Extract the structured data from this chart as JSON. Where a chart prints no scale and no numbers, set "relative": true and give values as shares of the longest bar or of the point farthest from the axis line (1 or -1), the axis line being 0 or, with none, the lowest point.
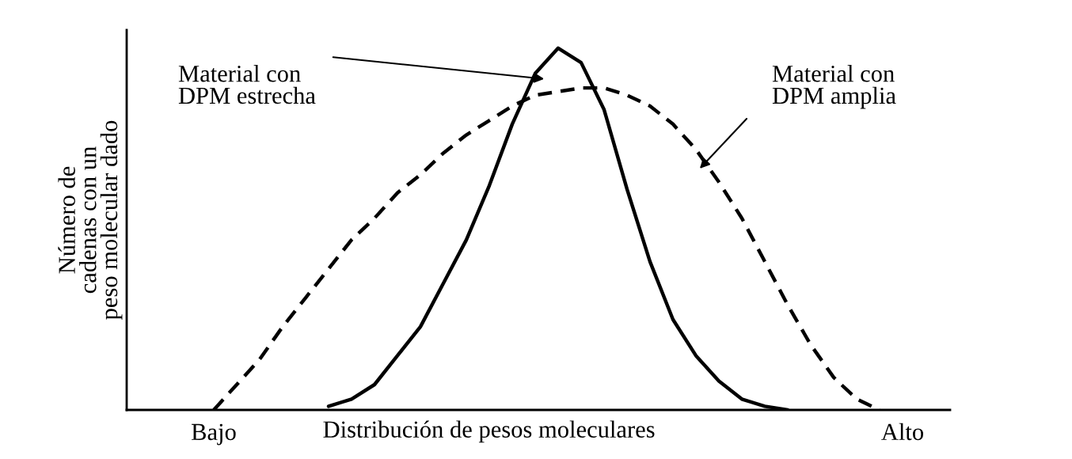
{
  "chart_data": {
    "type": "line",
    "relative": true,
    "xlabel": "Distribución de pesos moleculares",
    "ylabel": "Número de\ncadenas con un\npeso molecular dado",
    "categories": [
      "Bajo",
      null,
      null,
      null,
      null,
      null,
      null,
      null,
      null,
      null,
      null,
      null,
      null,
      null,
      null,
      null,
      null,
      null,
      null,
      null,
      null,
      null,
      null,
      null,
      null,
      null,
      null,
      null,
      null,
      null,
      "Alto"
    ],
    "grid": false,
    "legend": false,
    "marker": "none",
    "series": [
      {
        "color": "#000000",
        "line_style": "solid",
        "values": [
          null,
          null,
          null,
          null,
          null,
          0.01,
          0.03,
          0.07,
          0.15,
          0.23,
          0.35,
          0.47,
          0.62,
          0.79,
          0.93,
          1,
          0.96,
          0.83,
          0.61,
          0.41,
          0.25,
          0.15,
          0.08,
          0.03,
          0.01,
          0,
          null,
          null,
          null,
          null,
          null
        ]
      },
      {
        "color": "#000000",
        "line_style": "dashed",
        "values": [
          0,
          0.07,
          0.14,
          0.23,
          0.31,
          0.39,
          0.47,
          0.53,
          0.6,
          0.65,
          0.71,
          0.76,
          0.8,
          0.84,
          0.87,
          0.88,
          0.89,
          0.89,
          0.87,
          0.84,
          0.79,
          0.72,
          0.63,
          0.53,
          0.41,
          0.29,
          0.18,
          0.09,
          0.03,
          0,
          null
        ]
      }
    ],
    "annotations": [
      "Material con\nDPM estrecha",
      "Material con\nDPM amplia"
    ]
  }
}
